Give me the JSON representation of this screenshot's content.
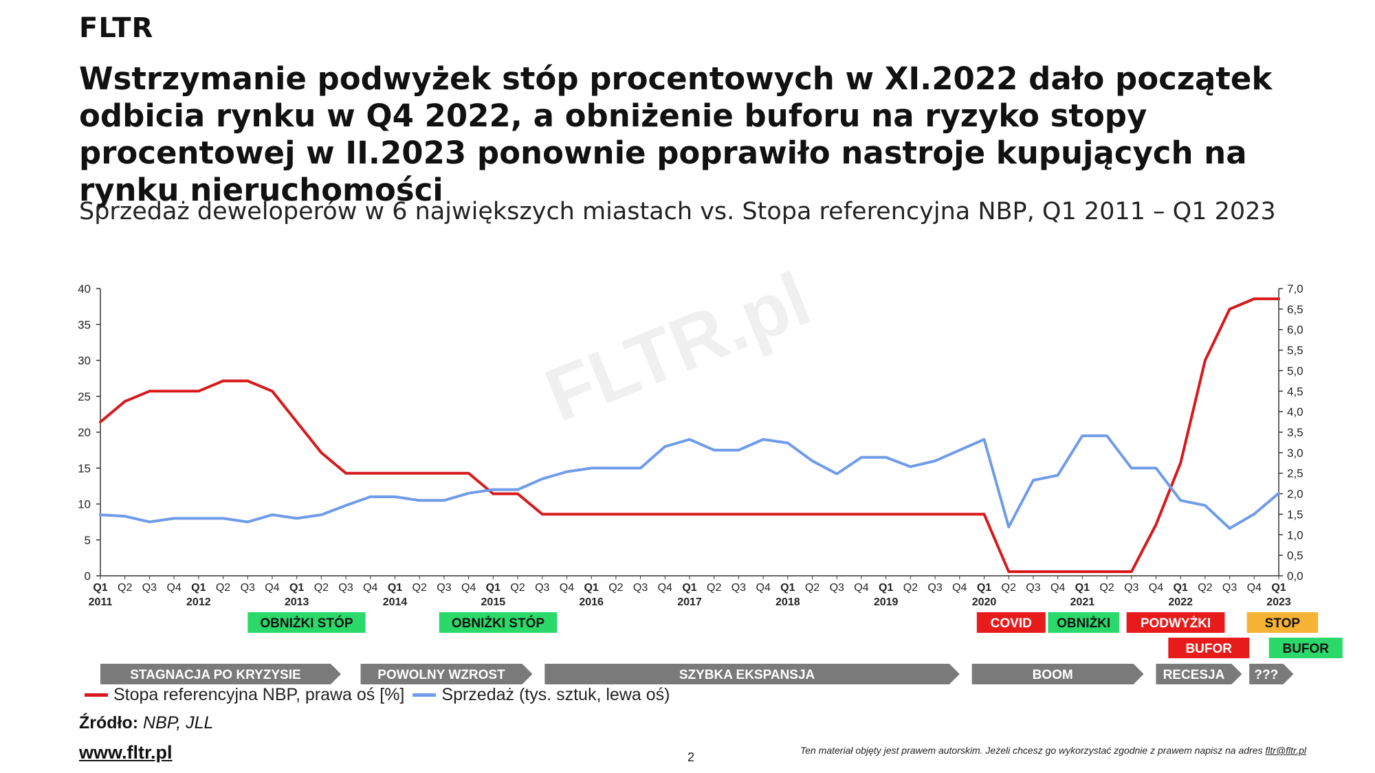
{
  "header": {
    "brand": "FLTR",
    "title": "Wstrzymanie podwyżek stóp procentowych w XI.2022 dało początek odbicia rynku w Q4 2022, a obniżenie buforu na ryzyko stopy procentowej w II.2023 ponownie poprawiło nastroje kupujących na rynku nieruchomości",
    "subtitle": "Sprzedaż deweloperów w 6 największych miastach vs. Stopa referencyjna NBP, Q1 2011 – Q1 2023"
  },
  "watermark": "FLTR.pl",
  "colors": {
    "rate_line": "#d7191c",
    "sales_line": "#6f9be8",
    "red_tag": "#e81b1b",
    "green_tag": "#2bd96a",
    "amber_tag": "#f7b333",
    "phase_arrow": "#7a7a7a"
  },
  "chart_data": {
    "type": "line",
    "categories": [
      "Q1",
      "Q2",
      "Q3",
      "Q4",
      "Q1",
      "Q2",
      "Q3",
      "Q4",
      "Q1",
      "Q2",
      "Q3",
      "Q4",
      "Q1",
      "Q2",
      "Q3",
      "Q4",
      "Q1",
      "Q2",
      "Q3",
      "Q4",
      "Q1",
      "Q2",
      "Q3",
      "Q4",
      "Q1",
      "Q2",
      "Q3",
      "Q4",
      "Q1",
      "Q2",
      "Q3",
      "Q4",
      "Q1",
      "Q2",
      "Q3",
      "Q4",
      "Q1",
      "Q2",
      "Q3",
      "Q4",
      "Q1",
      "Q2",
      "Q3",
      "Q4",
      "Q1",
      "Q2",
      "Q3",
      "Q4",
      "Q1"
    ],
    "year_labels": [
      "2011",
      "",
      "",
      "",
      "2012",
      "",
      "",
      "",
      "2013",
      "",
      "",
      "",
      "2014",
      "",
      "",
      "",
      "2015",
      "",
      "",
      "",
      "2016",
      "",
      "",
      "",
      "2017",
      "",
      "",
      "",
      "2018",
      "",
      "",
      "",
      "2019",
      "",
      "",
      "",
      "2020",
      "",
      "",
      "",
      "2021",
      "",
      "",
      "",
      "2022",
      "",
      "",
      "",
      "2023"
    ],
    "series": [
      {
        "name": "Stopa referencyjna NBP, prawa oś [%]",
        "axis": "right",
        "color": "#d7191c",
        "values": [
          3.75,
          4.25,
          4.5,
          4.5,
          4.5,
          4.75,
          4.75,
          4.5,
          3.75,
          3.0,
          2.5,
          2.5,
          2.5,
          2.5,
          2.5,
          2.5,
          2.0,
          2.0,
          1.5,
          1.5,
          1.5,
          1.5,
          1.5,
          1.5,
          1.5,
          1.5,
          1.5,
          1.5,
          1.5,
          1.5,
          1.5,
          1.5,
          1.5,
          1.5,
          1.5,
          1.5,
          1.5,
          0.1,
          0.1,
          0.1,
          0.1,
          0.1,
          0.1,
          1.25,
          2.75,
          5.25,
          6.5,
          6.75,
          6.75
        ]
      },
      {
        "name": "Sprzedaż (tys. sztuk, lewa oś)",
        "axis": "left",
        "color": "#6f9be8",
        "values": [
          8.5,
          8.3,
          7.5,
          8.0,
          8.0,
          8.0,
          7.5,
          8.5,
          8.0,
          8.5,
          9.8,
          11.0,
          11.0,
          10.5,
          10.5,
          11.5,
          12.0,
          12.0,
          13.5,
          14.5,
          15.0,
          15.0,
          15.0,
          18.0,
          19.0,
          17.5,
          17.5,
          19.0,
          18.5,
          16.0,
          14.2,
          16.5,
          16.5,
          15.2,
          16.0,
          17.5,
          19.0,
          6.8,
          13.3,
          14.0,
          19.5,
          19.5,
          15.0,
          15.0,
          10.5,
          9.8,
          6.6,
          8.6,
          11.5
        ]
      }
    ],
    "y_left": {
      "min": 0,
      "max": 40,
      "ticks": [
        "0",
        "5",
        "10",
        "15",
        "20",
        "25",
        "30",
        "35",
        "40"
      ]
    },
    "y_right": {
      "min": 0,
      "max": 7,
      "ticks": [
        "0,0",
        "0,5",
        "1,0",
        "1,5",
        "2,0",
        "2,5",
        "3,0",
        "3,5",
        "4,0",
        "4,5",
        "5,0",
        "5,5",
        "6,0",
        "6,5",
        "7,0"
      ]
    },
    "grid": false,
    "legend_position": "bottom-left",
    "events": [
      {
        "label": "OBNIŻKI STÓP",
        "color": "green",
        "row": 1,
        "from": 6,
        "to": 10.8
      },
      {
        "label": "OBNIŻKI STÓP",
        "color": "green",
        "row": 1,
        "from": 13.8,
        "to": 18.6
      },
      {
        "label": "COVID",
        "color": "red",
        "row": 1,
        "from": 35.7,
        "to": 38.5
      },
      {
        "label": "OBNIŻKI",
        "color": "green",
        "row": 1,
        "from": 38.6,
        "to": 41.5
      },
      {
        "label": "PODWYŻKI",
        "color": "red",
        "row": 1,
        "from": 41.8,
        "to": 45.8
      },
      {
        "label": "BUFOR",
        "color": "red",
        "row": 2,
        "from": 43.5,
        "to": 46.8
      },
      {
        "label": "STOP",
        "color": "amber",
        "row": 1,
        "from": 46.7,
        "to": 49.6
      },
      {
        "label": "BUFOR",
        "color": "green",
        "row": 2,
        "from": 47.6,
        "to": 50.6
      }
    ],
    "phases": [
      {
        "label": "STAGNACJA PO KRYZYSIE",
        "from": 0,
        "to": 9.8
      },
      {
        "label": "POWOLNY WZROST",
        "from": 10.6,
        "to": 17.6
      },
      {
        "label": "SZYBKA EKSPANSJA",
        "from": 18.1,
        "to": 35.0
      },
      {
        "label": "BOOM",
        "from": 35.5,
        "to": 42.5
      },
      {
        "label": "RECESJA",
        "from": 43.0,
        "to": 46.5
      },
      {
        "label": "???",
        "from": 46.8,
        "to": 48.6
      }
    ]
  },
  "legend": {
    "rate": "Stopa referencyjna NBP, prawa oś [%]",
    "sales": "Sprzedaż (tys. sztuk, lewa oś)"
  },
  "footer": {
    "source_label": "Źródło:",
    "source_value": "NBP, JLL",
    "url": "www.fltr.pl",
    "page": "2",
    "copyright": "Ten materiał objęty jest prawem autorskim. Jeżeli chcesz go wykorzystać zgodnie z prawem napisz na adres",
    "email": "fltr@fltr.pl"
  }
}
